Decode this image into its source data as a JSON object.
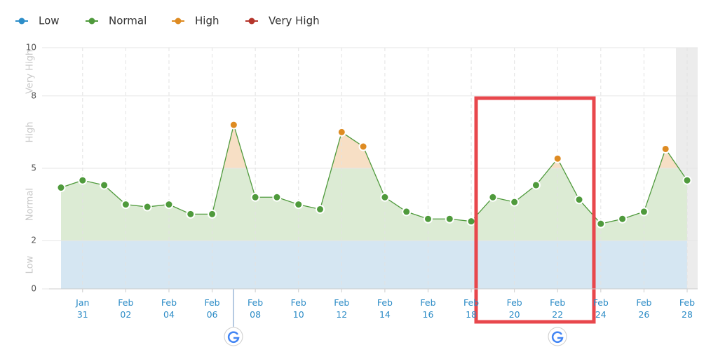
{
  "chart_data": {
    "type": "line",
    "levels": [
      {
        "name": "Low",
        "color": "#2d8ec9",
        "fill": "#d5e6f2",
        "from": 0,
        "to": 2
      },
      {
        "name": "Normal",
        "color": "#4f9a3c",
        "fill": "#dcebd4",
        "from": 2,
        "to": 5
      },
      {
        "name": "High",
        "color": "#de8b22",
        "fill": "#f7dfc5",
        "from": 5,
        "to": 8
      },
      {
        "name": "Very High",
        "color": "#b5352b",
        "fill": "#f2d2cf",
        "from": 8,
        "to": 10
      }
    ],
    "categories": [
      null,
      "Jan\n31",
      null,
      "Feb\n02",
      null,
      "Feb\n04",
      null,
      "Feb\n06",
      null,
      "Feb\n08",
      null,
      "Feb\n10",
      null,
      "Feb\n12",
      null,
      "Feb\n14",
      null,
      "Feb\n16",
      null,
      "Feb\n18",
      null,
      "Feb\n20",
      null,
      "Feb\n22",
      null,
      "Feb\n24",
      null,
      "Feb\n26",
      null,
      "Feb\n28"
    ],
    "values": [
      4.2,
      4.5,
      4.3,
      3.5,
      3.4,
      3.5,
      3.1,
      3.1,
      6.8,
      3.8,
      3.8,
      3.5,
      3.3,
      6.5,
      5.9,
      3.8,
      3.2,
      2.9,
      2.9,
      2.8,
      3.8,
      3.6,
      4.3,
      5.4,
      3.7,
      2.7,
      2.9,
      3.2,
      5.8,
      4.5
    ],
    "ylim": [
      0,
      10
    ],
    "yticks": [
      0,
      2,
      5,
      8,
      10
    ],
    "grid": true
  }
}
